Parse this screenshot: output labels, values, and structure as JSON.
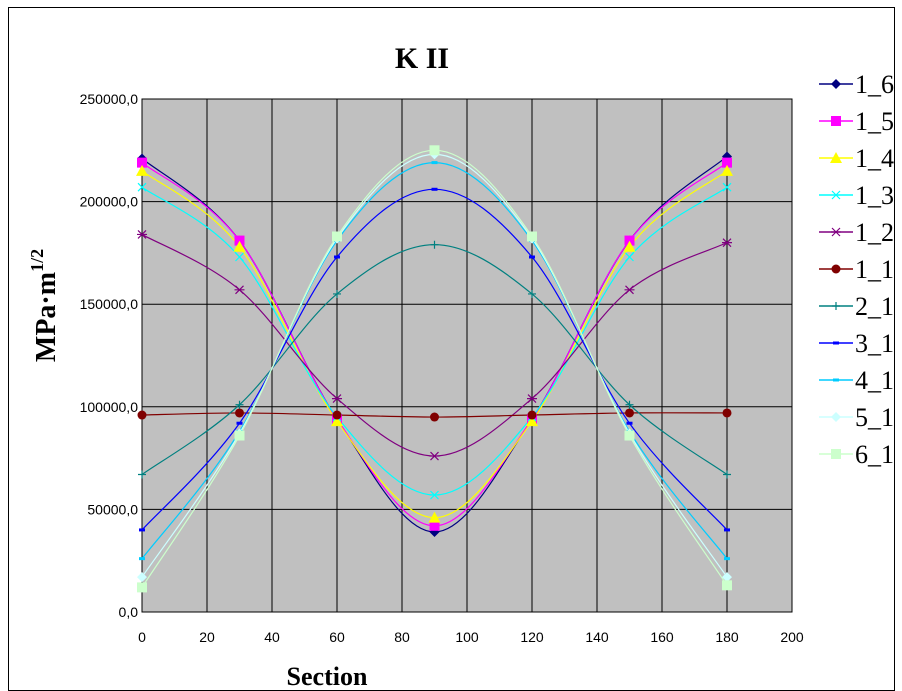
{
  "chart_data": {
    "type": "scatter",
    "title": "K II",
    "xlabel": "Section",
    "ylabel": "MPa·m",
    "ylabel_sup": "1/2",
    "xlim": [
      0,
      200
    ],
    "ylim": [
      0,
      250000
    ],
    "x_ticks": [
      "0",
      "20",
      "40",
      "60",
      "80",
      "100",
      "120",
      "140",
      "160",
      "180",
      "200"
    ],
    "y_ticks": [
      "0,0",
      "50000,0",
      "100000,0",
      "150000,0",
      "200000,0",
      "250000,0"
    ],
    "grid": true,
    "plot_background": "#c0c0c0",
    "legend_position": "right (partially clipped)",
    "series": [
      {
        "name": "1_6",
        "color": "#000080",
        "marker": "diamond",
        "x": [
          0,
          30,
          60,
          90,
          120,
          150,
          180
        ],
        "y": [
          221000,
          181000,
          94000,
          39000,
          94000,
          181000,
          222000
        ]
      },
      {
        "name": "1_5",
        "color": "#ff00ff",
        "marker": "square",
        "x": [
          0,
          30,
          60,
          90,
          120,
          150,
          180
        ],
        "y": [
          219000,
          181000,
          94000,
          42000,
          94000,
          181000,
          219000
        ]
      },
      {
        "name": "1_4",
        "color": "#ffff00",
        "marker": "triangle",
        "x": [
          0,
          30,
          60,
          90,
          120,
          150,
          180
        ],
        "y": [
          215000,
          178000,
          93000,
          46000,
          93000,
          178000,
          215000
        ]
      },
      {
        "name": "1_3",
        "color": "#00ffff",
        "marker": "x",
        "x": [
          0,
          30,
          60,
          90,
          120,
          150,
          180
        ],
        "y": [
          207000,
          173000,
          95000,
          57000,
          95000,
          173000,
          207000
        ]
      },
      {
        "name": "1_2",
        "color": "#800080",
        "marker": "asterisk",
        "x": [
          0,
          30,
          60,
          90,
          120,
          150,
          180
        ],
        "y": [
          184000,
          157000,
          104000,
          76000,
          104000,
          157000,
          180000
        ]
      },
      {
        "name": "1_1",
        "color": "#800000",
        "marker": "circle",
        "x": [
          0,
          30,
          60,
          90,
          120,
          150,
          180
        ],
        "y": [
          96000,
          97000,
          96000,
          95000,
          96000,
          97000,
          97000
        ]
      },
      {
        "name": "2_1",
        "color": "#008080",
        "marker": "plus",
        "x": [
          0,
          30,
          60,
          90,
          120,
          150,
          180
        ],
        "y": [
          67000,
          101000,
          155000,
          179000,
          155000,
          101000,
          67000
        ]
      },
      {
        "name": "3_1",
        "color": "#0000ff",
        "marker": "dash",
        "x": [
          0,
          30,
          60,
          90,
          120,
          150,
          180
        ],
        "y": [
          40000,
          92000,
          173000,
          206000,
          173000,
          92000,
          40000
        ]
      },
      {
        "name": "4_1",
        "color": "#00ccff",
        "marker": "dash",
        "x": [
          0,
          30,
          60,
          90,
          120,
          150,
          180
        ],
        "y": [
          26000,
          88000,
          181000,
          219000,
          181000,
          88000,
          26000
        ]
      },
      {
        "name": "5_1",
        "color": "#ccffff",
        "marker": "diamond",
        "x": [
          0,
          30,
          60,
          90,
          120,
          150,
          180
        ],
        "y": [
          17000,
          87000,
          182000,
          223000,
          182000,
          87000,
          17000
        ]
      },
      {
        "name": "6_1",
        "color": "#ccffcc",
        "marker": "square",
        "x": [
          0,
          30,
          60,
          90,
          120,
          150,
          180
        ],
        "y": [
          12000,
          86000,
          183000,
          225000,
          183000,
          86000,
          13000
        ]
      }
    ]
  }
}
